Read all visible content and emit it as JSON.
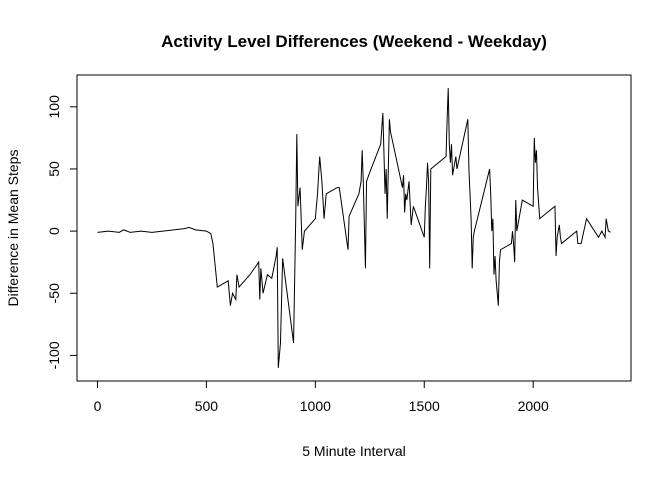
{
  "chart_data": {
    "type": "line",
    "title": "Activity Level Differences (Weekend - Weekday)",
    "x_label": "5 Minute Interval",
    "y_label": "Difference in Mean Steps",
    "color": "#000000",
    "x": [
      0,
      50,
      100,
      120,
      150,
      200,
      250,
      300,
      350,
      400,
      420,
      450,
      500,
      520,
      530,
      550,
      600,
      610,
      620,
      635,
      640,
      650,
      700,
      720,
      740,
      745,
      750,
      760,
      780,
      800,
      820,
      825,
      830,
      840,
      850,
      900,
      910,
      915,
      920,
      930,
      940,
      950,
      1000,
      1010,
      1020,
      1030,
      1040,
      1050,
      1100,
      1110,
      1150,
      1155,
      1200,
      1210,
      1215,
      1220,
      1230,
      1235,
      1245,
      1300,
      1310,
      1320,
      1325,
      1330,
      1340,
      1345,
      1400,
      1405,
      1410,
      1415,
      1420,
      1430,
      1440,
      1450,
      1500,
      1505,
      1510,
      1515,
      1520,
      1525,
      1530,
      1600,
      1605,
      1610,
      1615,
      1620,
      1625,
      1630,
      1645,
      1650,
      1700,
      1705,
      1710,
      1715,
      1720,
      1725,
      1730,
      1800,
      1805,
      1810,
      1815,
      1820,
      1825,
      1830,
      1840,
      1845,
      1850,
      1900,
      1905,
      1910,
      1915,
      1920,
      1925,
      1950,
      2000,
      2005,
      2010,
      2015,
      2020,
      2030,
      2100,
      2105,
      2110,
      2120,
      2125,
      2130,
      2200,
      2205,
      2220,
      2245,
      2300,
      2315,
      2330,
      2335,
      2345,
      2355
    ],
    "values": [
      -1,
      0,
      -1,
      1,
      -1,
      0,
      -1,
      0,
      1,
      2,
      3,
      1,
      0,
      -2,
      -10,
      -45,
      -40,
      -60,
      -50,
      -55,
      -35,
      -45,
      -35,
      -30,
      -25,
      -55,
      -30,
      -50,
      -35,
      -38,
      -20,
      -13,
      -110,
      -90,
      -22,
      -90,
      10,
      78,
      20,
      35,
      -15,
      0,
      10,
      30,
      60,
      40,
      10,
      30,
      35,
      35,
      -15,
      12,
      30,
      40,
      65,
      40,
      -30,
      40,
      45,
      70,
      95,
      30,
      50,
      10,
      90,
      80,
      35,
      45,
      15,
      30,
      25,
      40,
      5,
      20,
      -5,
      20,
      35,
      55,
      40,
      -30,
      50,
      60,
      90,
      115,
      70,
      55,
      70,
      45,
      60,
      50,
      90,
      50,
      30,
      10,
      -30,
      -5,
      0,
      50,
      30,
      0,
      10,
      -35,
      -20,
      -40,
      -60,
      -25,
      -15,
      -10,
      0,
      -10,
      -25,
      25,
      0,
      25,
      20,
      75,
      55,
      65,
      35,
      10,
      20,
      -20,
      -5,
      5,
      -5,
      -10,
      0,
      -10,
      -10,
      10,
      -5,
      0,
      -5,
      10,
      0,
      -1
    ],
    "xlim": [
      -94,
      2449
    ],
    "ylim": [
      -120.6,
      125.6
    ],
    "xticks": [
      0,
      500,
      1000,
      1500,
      2000
    ],
    "yticks": [
      -100,
      -50,
      0,
      50,
      100
    ]
  }
}
